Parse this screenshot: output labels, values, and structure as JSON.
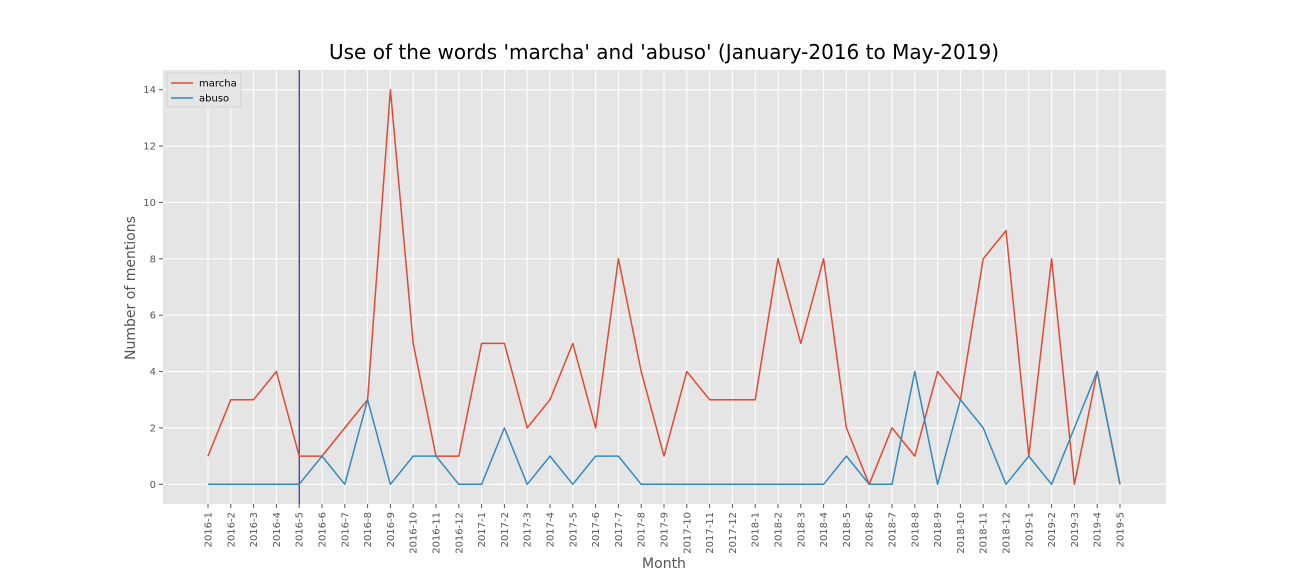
{
  "chart_data": {
    "type": "line",
    "title": "Use of the words 'marcha' and 'abuso' (January-2016 to May-2019)",
    "xlabel": "Month",
    "ylabel": "Number of mentions",
    "categories": [
      "2016-1",
      "2016-2",
      "2016-3",
      "2016-4",
      "2016-5",
      "2016-6",
      "2016-7",
      "2016-8",
      "2016-9",
      "2016-10",
      "2016-11",
      "2016-12",
      "2017-1",
      "2017-2",
      "2017-3",
      "2017-4",
      "2017-5",
      "2017-6",
      "2017-7",
      "2017-8",
      "2017-9",
      "2017-10",
      "2017-11",
      "2017-12",
      "2018-1",
      "2018-2",
      "2018-3",
      "2018-4",
      "2018-5",
      "2018-6",
      "2018-7",
      "2018-8",
      "2018-9",
      "2018-10",
      "2018-11",
      "2018-12",
      "2019-1",
      "2019-2",
      "2019-3",
      "2019-4",
      "2019-5"
    ],
    "series": [
      {
        "name": "marcha",
        "color": "#E24A33",
        "values": [
          1,
          3,
          3,
          4,
          1,
          1,
          2,
          3,
          14,
          5,
          1,
          1,
          5,
          5,
          2,
          3,
          5,
          2,
          8,
          4,
          1,
          4,
          3,
          3,
          3,
          8,
          5,
          8,
          2,
          0,
          2,
          1,
          4,
          3,
          8,
          9,
          1,
          8,
          0,
          4,
          0
        ]
      },
      {
        "name": "abuso",
        "color": "#348ABD",
        "values": [
          0,
          0,
          0,
          0,
          0,
          1,
          0,
          3,
          0,
          1,
          1,
          0,
          0,
          2,
          0,
          1,
          0,
          1,
          1,
          0,
          0,
          0,
          0,
          0,
          0,
          0,
          0,
          0,
          1,
          0,
          0,
          4,
          0,
          3,
          2,
          0,
          1,
          0,
          2,
          4,
          0
        ]
      }
    ],
    "yticks": [
      0,
      2,
      4,
      6,
      8,
      10,
      12,
      14
    ],
    "ylim": [
      -0.7,
      14.7
    ],
    "vline": {
      "category": "2016-5",
      "color": "#00008B"
    },
    "grid": true,
    "legend": "top-left",
    "background": "#E5E5E5"
  }
}
